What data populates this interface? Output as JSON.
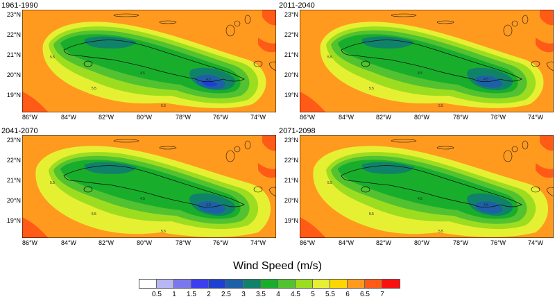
{
  "panels": [
    {
      "title": "1961-1990",
      "contour_labels": [
        "5.5",
        "4.5",
        "4.5",
        "5.5",
        "5.5"
      ]
    },
    {
      "title": "2011-2040",
      "contour_labels": [
        "5.5",
        "4.5",
        "4.5",
        "5.5",
        "5.5"
      ]
    },
    {
      "title": "2041-2070",
      "contour_labels": [
        "5.5",
        "4.5",
        "4.5",
        "5.5",
        "5.5"
      ]
    },
    {
      "title": "2071-2098",
      "contour_labels": [
        "5.5",
        "4.5",
        "4.5",
        "5.5",
        "5.5"
      ]
    }
  ],
  "axes": {
    "lat_labels": [
      "23°N",
      "22°N",
      "21°N",
      "20°N",
      "19°N"
    ],
    "lon_labels": [
      "86°W",
      "84°W",
      "82°W",
      "80°W",
      "78°W",
      "76°W",
      "74°W"
    ]
  },
  "legend": {
    "title": "Wind Speed (m/s)",
    "ticks": [
      "0.5",
      "1",
      "1.5",
      "2",
      "2.5",
      "3",
      "3.5",
      "4",
      "4.5",
      "5",
      "5.5",
      "6",
      "6.5",
      "7"
    ],
    "colors": [
      "#ffffff",
      "#b8b6f4",
      "#7b78ee",
      "#3c3ef0",
      "#1e3fd2",
      "#1d60a8",
      "#10826a",
      "#18ae2c",
      "#52c230",
      "#9ddd20",
      "#e6f032",
      "#fdd700",
      "#ff9a1f",
      "#ff5a16",
      "#f8110f"
    ]
  }
}
